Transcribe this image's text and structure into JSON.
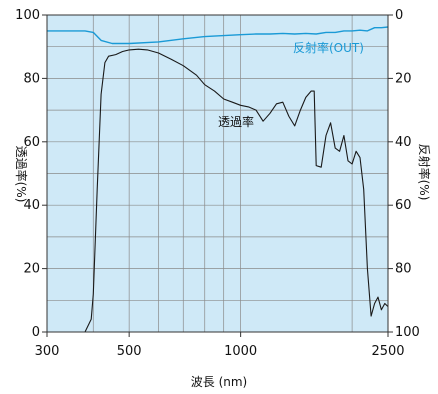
{
  "chart_data": {
    "type": "line",
    "xlabel": "波長 (nm)",
    "ylabel_left": "透過率(%)",
    "ylabel_right": "反射率(%)",
    "x_scale": "log",
    "xlim": [
      300,
      2500
    ],
    "x_ticks": [
      300,
      500,
      1000,
      2500
    ],
    "x_tick_labels": [
      "300",
      "500",
      "1000",
      "2500"
    ],
    "ylim_left": [
      0,
      100
    ],
    "y_ticks_left": [
      0,
      20,
      40,
      60,
      80,
      100
    ],
    "ylim_right": [
      100,
      0
    ],
    "y_ticks_right": [
      0,
      20,
      40,
      60,
      80,
      100
    ],
    "grid": true,
    "colors": {
      "plot_background": "#cfe9f7",
      "grid": "#8a8a8a",
      "transmittance": "#1a1a1a",
      "reflectance": "#1a9ad6"
    },
    "series": [
      {
        "name": "透過率",
        "axis": "left",
        "points": [
          [
            300,
            0
          ],
          [
            380,
            0
          ],
          [
            395,
            4
          ],
          [
            400,
            12
          ],
          [
            410,
            45
          ],
          [
            420,
            75
          ],
          [
            430,
            85
          ],
          [
            440,
            87
          ],
          [
            460,
            87.5
          ],
          [
            480,
            88.5
          ],
          [
            500,
            89
          ],
          [
            530,
            89.2
          ],
          [
            560,
            89
          ],
          [
            600,
            88
          ],
          [
            650,
            86
          ],
          [
            700,
            84
          ],
          [
            760,
            81
          ],
          [
            800,
            78
          ],
          [
            850,
            76
          ],
          [
            900,
            73.5
          ],
          [
            950,
            72.5
          ],
          [
            1000,
            71.5
          ],
          [
            1050,
            71
          ],
          [
            1100,
            70
          ],
          [
            1150,
            66.5
          ],
          [
            1200,
            69
          ],
          [
            1250,
            72
          ],
          [
            1300,
            72.5
          ],
          [
            1350,
            68
          ],
          [
            1400,
            65
          ],
          [
            1450,
            70
          ],
          [
            1500,
            74
          ],
          [
            1550,
            76
          ],
          [
            1580,
            76
          ],
          [
            1600,
            52.5
          ],
          [
            1650,
            52
          ],
          [
            1700,
            62
          ],
          [
            1750,
            66
          ],
          [
            1800,
            58
          ],
          [
            1850,
            57
          ],
          [
            1900,
            62
          ],
          [
            1950,
            54
          ],
          [
            2000,
            53
          ],
          [
            2050,
            57
          ],
          [
            2100,
            55
          ],
          [
            2150,
            45
          ],
          [
            2200,
            20
          ],
          [
            2250,
            5
          ],
          [
            2300,
            9
          ],
          [
            2350,
            11
          ],
          [
            2400,
            7
          ],
          [
            2450,
            9
          ],
          [
            2500,
            8
          ]
        ]
      },
      {
        "name": "反射率(OUT)",
        "axis": "right",
        "points": [
          [
            300,
            5
          ],
          [
            380,
            5
          ],
          [
            400,
            5.5
          ],
          [
            420,
            8
          ],
          [
            450,
            9
          ],
          [
            500,
            9
          ],
          [
            600,
            8.5
          ],
          [
            700,
            7.5
          ],
          [
            800,
            6.8
          ],
          [
            900,
            6.5
          ],
          [
            1000,
            6.2
          ],
          [
            1100,
            6
          ],
          [
            1200,
            6
          ],
          [
            1300,
            5.8
          ],
          [
            1400,
            6
          ],
          [
            1500,
            5.8
          ],
          [
            1600,
            6
          ],
          [
            1700,
            5.5
          ],
          [
            1800,
            5.5
          ],
          [
            1900,
            5
          ],
          [
            2000,
            5
          ],
          [
            2100,
            4.8
          ],
          [
            2200,
            5
          ],
          [
            2300,
            4
          ],
          [
            2400,
            4
          ],
          [
            2500,
            3.8
          ]
        ]
      }
    ],
    "annotations": [
      {
        "text": "反射率(OUT)",
        "series": "反射率(OUT)"
      },
      {
        "text": "透過率",
        "series": "透過率"
      }
    ]
  }
}
